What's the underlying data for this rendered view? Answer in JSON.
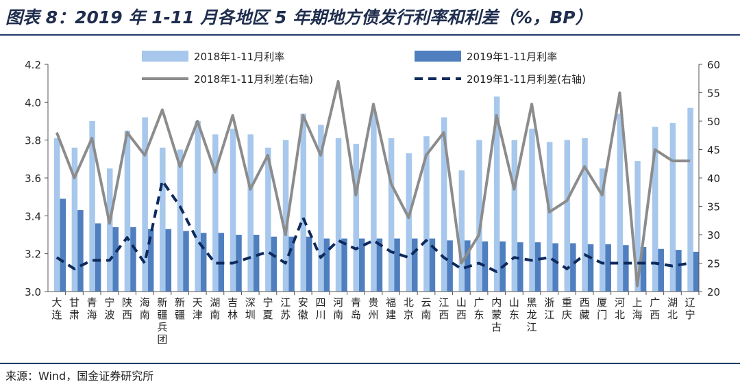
{
  "title": "图表 8：2019 年 1-11 月各地区 5 年期地方债发行利率和利差（%，BP）",
  "source": "来源：Wind，国金证券研究所",
  "colors": {
    "bar2018": "#a7c8ec",
    "bar2019": "#4f7fbf",
    "line2018": "#8c8c8c",
    "line2019": "#0e2a5c"
  },
  "chart_data": {
    "type": "bar",
    "categories": [
      "大连",
      "甘肃",
      "青海",
      "宁波",
      "陕西",
      "海南",
      "新疆兵团",
      "新疆",
      "天津",
      "湖南",
      "吉林",
      "深圳",
      "宁夏",
      "江苏",
      "安徽",
      "四川",
      "河南",
      "青岛",
      "贵州",
      "福建",
      "北京",
      "云南",
      "江西",
      "山西",
      "广东",
      "内蒙古",
      "山东",
      "黑龙江",
      "浙江",
      "重庆",
      "西藏",
      "厦门",
      "河北",
      "上海",
      "广西",
      "湖北",
      "辽宁"
    ],
    "series": [
      {
        "name": "2018年1-11月利率",
        "type": "bar",
        "axis": "left",
        "values": [
          3.81,
          3.76,
          3.9,
          3.65,
          3.85,
          3.92,
          3.76,
          3.75,
          3.9,
          3.83,
          3.86,
          3.83,
          3.76,
          3.8,
          3.94,
          3.88,
          3.81,
          3.78,
          3.95,
          3.81,
          3.73,
          3.82,
          3.92,
          3.64,
          3.8,
          4.03,
          3.8,
          3.86,
          3.79,
          3.8,
          3.81,
          3.65,
          3.94,
          3.69,
          3.87,
          3.89,
          3.97
        ]
      },
      {
        "name": "2019年1-11月利率",
        "type": "bar",
        "axis": "left",
        "values": [
          3.49,
          3.43,
          3.36,
          3.34,
          3.34,
          3.33,
          3.33,
          3.32,
          3.31,
          3.31,
          3.3,
          3.3,
          3.29,
          3.29,
          3.29,
          3.28,
          3.28,
          3.28,
          3.28,
          3.28,
          3.28,
          3.28,
          3.27,
          3.27,
          3.265,
          3.265,
          3.26,
          3.26,
          3.255,
          3.255,
          3.25,
          3.25,
          3.245,
          3.235,
          3.225,
          3.22,
          3.21
        ]
      },
      {
        "name": "2018年1-11月利差(右轴)",
        "type": "line",
        "axis": "right",
        "values": [
          48,
          40,
          47,
          32,
          48,
          44,
          52,
          42,
          50,
          41,
          51,
          38,
          44,
          30,
          51,
          44,
          57,
          37,
          53,
          39,
          33,
          44,
          48,
          25,
          30,
          51,
          38,
          53,
          34,
          36,
          42,
          37,
          55,
          21,
          45,
          43,
          43
        ]
      },
      {
        "name": "2019年1-11月利差(右轴)",
        "type": "line",
        "axis": "right",
        "values": [
          26,
          24,
          25.5,
          25.5,
          29.5,
          25,
          39.5,
          35,
          29,
          25,
          25,
          26,
          27,
          25,
          33,
          26,
          29,
          27.5,
          29,
          27,
          26,
          29,
          26,
          24,
          25,
          23.5,
          26,
          25.5,
          26,
          24,
          26.5,
          25,
          25,
          25,
          25,
          24.5,
          25
        ]
      }
    ],
    "yticks_left": [
      "4.2",
      "4.0",
      "3.8",
      "3.6",
      "3.4",
      "3.2",
      "3.0"
    ],
    "yticks_right": [
      "60",
      "55",
      "50",
      "45",
      "40",
      "35",
      "30",
      "25",
      "20"
    ],
    "ylim_left": [
      3.0,
      4.2
    ],
    "ylim_right": [
      20,
      60
    ],
    "grid": false,
    "legend": "top"
  }
}
